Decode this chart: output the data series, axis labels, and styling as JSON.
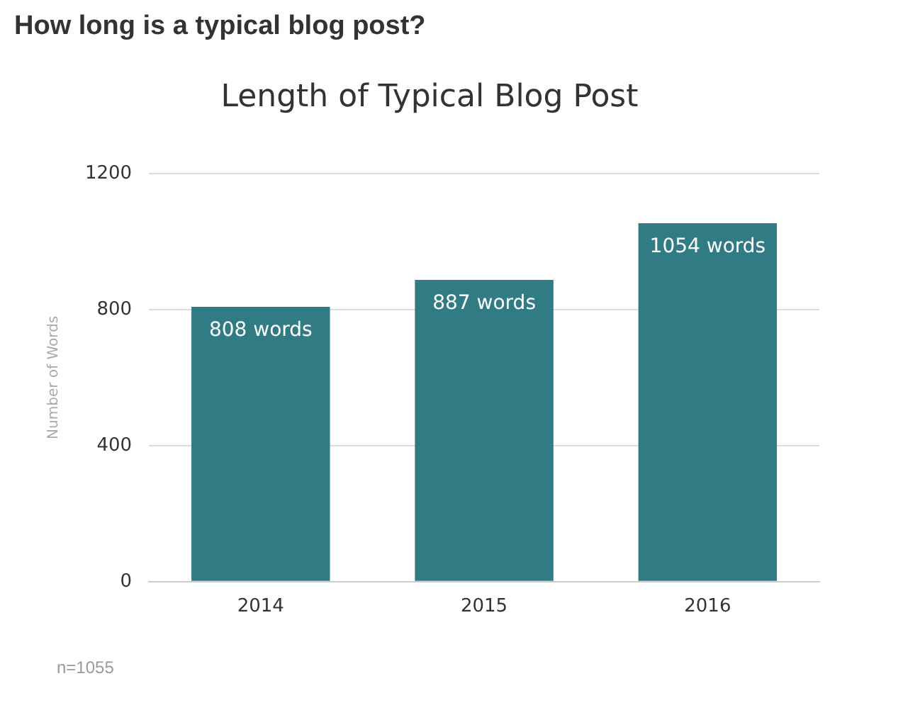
{
  "chart_data": {
    "type": "bar",
    "title": "How long is a typical blog post?",
    "subtitle": "Length of Typical Blog Post",
    "ylabel": "Number of Words",
    "categories": [
      "2014",
      "2015",
      "2016"
    ],
    "values": [
      808,
      887,
      1054
    ],
    "color": "#317b84",
    "value_labels": [
      "808 words",
      "887 words",
      "1054 words"
    ],
    "ylim": [
      0,
      1200
    ],
    "yticks": [
      0,
      400,
      800,
      1200
    ],
    "grid": "y",
    "legend": false,
    "annotations": [
      "n=1055"
    ]
  }
}
